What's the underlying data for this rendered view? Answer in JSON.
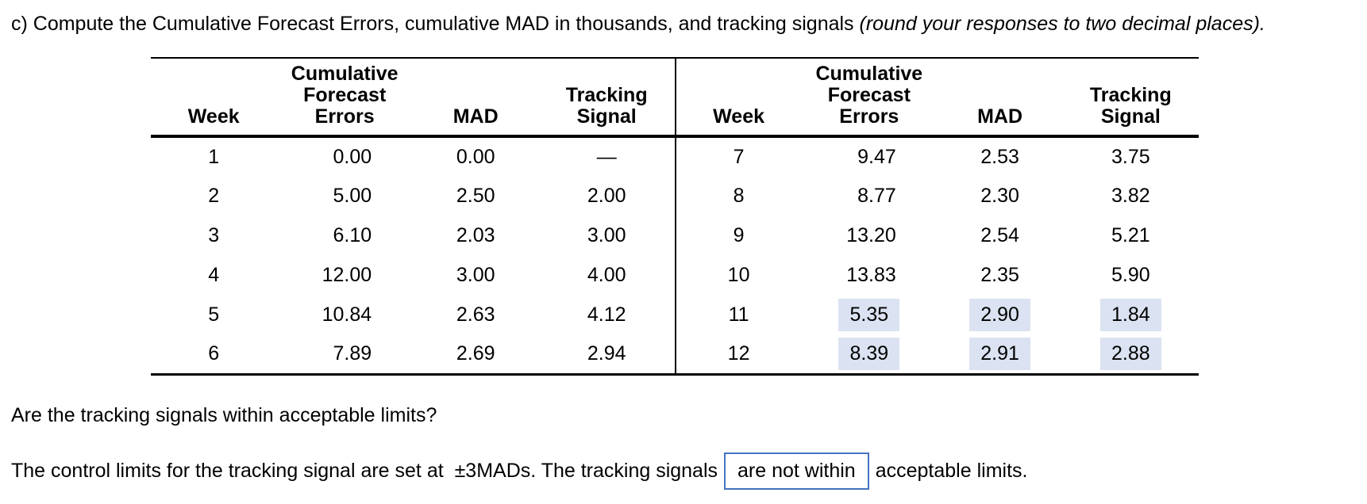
{
  "title": {
    "normal": "c) Compute the Cumulative Forecast Errors, cumulative MAD in thousands, and tracking signals ",
    "italic": "(round your responses to two decimal places)."
  },
  "table": {
    "headers": {
      "week": "Week",
      "cfe": "Cumulative\nForecast\nErrors",
      "mad": "MAD",
      "ts": "Tracking\nSignal"
    },
    "left": [
      {
        "week": "1",
        "cfe": "0.00",
        "mad": "0.00",
        "ts": "—"
      },
      {
        "week": "2",
        "cfe": "5.00",
        "mad": "2.50",
        "ts": "2.00"
      },
      {
        "week": "3",
        "cfe": "6.10",
        "mad": "2.03",
        "ts": "3.00"
      },
      {
        "week": "4",
        "cfe": "12.00",
        "mad": "3.00",
        "ts": "4.00"
      },
      {
        "week": "5",
        "cfe": "10.84",
        "mad": "2.63",
        "ts": "4.12"
      },
      {
        "week": "6",
        "cfe": "7.89",
        "mad": "2.69",
        "ts": "2.94"
      }
    ],
    "right": [
      {
        "week": "7",
        "cfe": "9.47",
        "mad": "2.53",
        "ts": "3.75"
      },
      {
        "week": "8",
        "cfe": "8.77",
        "mad": "2.30",
        "ts": "3.82"
      },
      {
        "week": "9",
        "cfe": "13.20",
        "mad": "2.54",
        "ts": "5.21"
      },
      {
        "week": "10",
        "cfe": "13.83",
        "mad": "2.35",
        "ts": "5.90"
      },
      {
        "week": "11",
        "cfe": "5.35",
        "mad": "2.90",
        "ts": "1.84",
        "highlighted": true
      },
      {
        "week": "12",
        "cfe": "8.39",
        "mad": "2.91",
        "ts": "2.88",
        "highlighted": true
      }
    ]
  },
  "question": "Are the tracking signals within acceptable limits?",
  "answer": {
    "pre": "The control limits for the tracking signal are set at  ±3MADs. The tracking signals",
    "selected": "are not within",
    "post": "acceptable limits."
  },
  "colors": {
    "highlight_bg": "#dbe2f1",
    "box_border": "#4472c4",
    "line_color": "#000000",
    "text_color": "#000000"
  }
}
